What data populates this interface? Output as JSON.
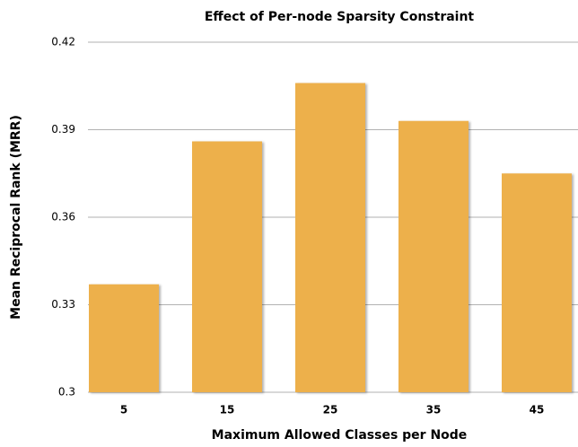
{
  "chart_data": {
    "type": "bar",
    "title": "Effect of Per-node Sparsity Constraint",
    "x_label": "Maximum Allowed Classes per Node",
    "y_label": "Mean Reciprocal Rank (MRR)",
    "categories": [
      "5",
      "15",
      "25",
      "35",
      "45"
    ],
    "values": [
      0.337,
      0.386,
      0.406,
      0.393,
      0.375
    ],
    "color": "#edb04b",
    "ylim": [
      0.3,
      0.42
    ],
    "yticks": [
      0.3,
      0.33,
      0.36,
      0.39,
      0.42
    ],
    "grid": true
  }
}
